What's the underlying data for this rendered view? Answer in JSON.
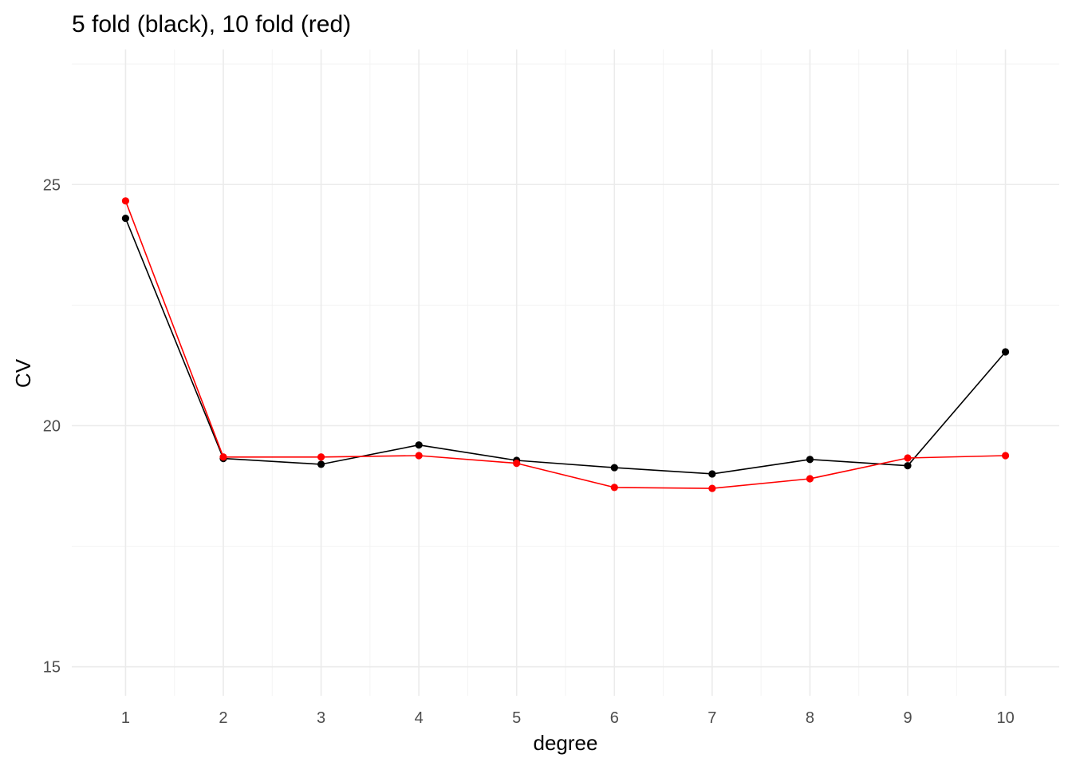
{
  "chart_data": {
    "type": "line",
    "title": "5 fold (black), 10 fold (red)",
    "xlabel": "degree",
    "ylabel": "CV",
    "x": [
      1,
      2,
      3,
      4,
      5,
      6,
      7,
      8,
      9,
      10
    ],
    "xticks": [
      "1",
      "2",
      "3",
      "4",
      "5",
      "6",
      "7",
      "8",
      "9",
      "10"
    ],
    "yticks": [
      "15",
      "20",
      "25"
    ],
    "ylim": [
      14.4,
      27.8
    ],
    "xlim": [
      0.45,
      10.55
    ],
    "grid": true,
    "series": [
      {
        "color": "#000000",
        "values": [
          24.3,
          19.32,
          19.2,
          19.6,
          19.28,
          19.13,
          19.0,
          19.3,
          19.17,
          21.53
        ]
      },
      {
        "color": "#ff0000",
        "values": [
          24.66,
          19.35,
          19.35,
          19.38,
          19.22,
          18.72,
          18.7,
          18.9,
          19.33,
          19.38
        ]
      }
    ]
  }
}
